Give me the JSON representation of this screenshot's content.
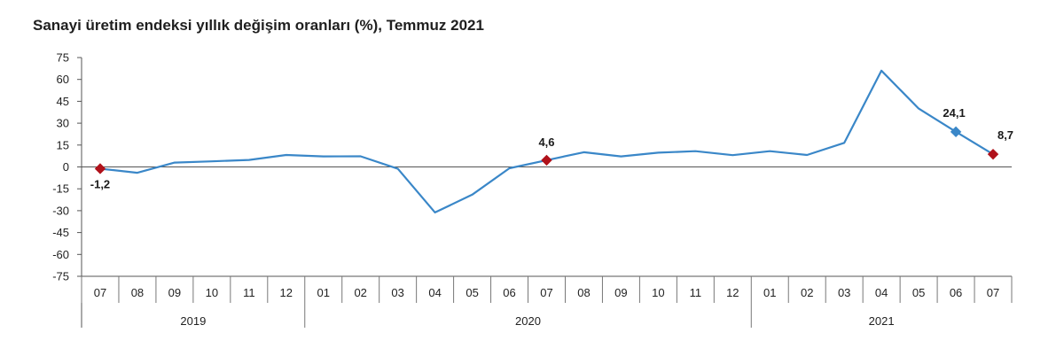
{
  "chart_data": {
    "type": "line",
    "title": "Sanayi üretim endeksi yıllık değişim oranları (%), Temmuz 2021",
    "xlabel": "",
    "ylabel": "",
    "ylim": [
      -75,
      75
    ],
    "yticks": [
      "75",
      "60",
      "45",
      "30",
      "15",
      "0",
      "-15",
      "-30",
      "-45",
      "-60",
      "-75"
    ],
    "ytick_values": [
      75,
      60,
      45,
      30,
      15,
      0,
      -15,
      -30,
      -45,
      -60,
      -75
    ],
    "categories": [
      "07",
      "08",
      "09",
      "10",
      "11",
      "12",
      "01",
      "02",
      "03",
      "04",
      "05",
      "06",
      "07",
      "08",
      "09",
      "10",
      "11",
      "12",
      "01",
      "02",
      "03",
      "04",
      "05",
      "06",
      "07"
    ],
    "years": [
      {
        "label": "2019",
        "start": 0,
        "end": 5
      },
      {
        "label": "2020",
        "start": 6,
        "end": 17
      },
      {
        "label": "2021",
        "start": 18,
        "end": 24
      }
    ],
    "series": [
      {
        "values": [
          -1.2,
          -4.0,
          3.0,
          3.8,
          4.8,
          8.2,
          7.2,
          7.3,
          -1.3,
          -31.2,
          -19.0,
          -0.9,
          4.6,
          10.1,
          7.2,
          9.8,
          10.8,
          8.1,
          10.8,
          8.2,
          16.5,
          66.0,
          40.0,
          24.1,
          8.7
        ],
        "color": "#3a87c8"
      }
    ],
    "markers": [
      {
        "index": 0,
        "label": "-1,2",
        "color": "#b0121b",
        "shape": "diamond"
      },
      {
        "index": 12,
        "label": "4,6",
        "color": "#b0121b",
        "shape": "diamond"
      },
      {
        "index": 23,
        "label": "24,1",
        "color": "#3a87c8",
        "shape": "diamond"
      },
      {
        "index": 24,
        "label": "8,7",
        "color": "#b0121b",
        "shape": "diamond"
      }
    ],
    "grid": false,
    "legend": "none"
  }
}
